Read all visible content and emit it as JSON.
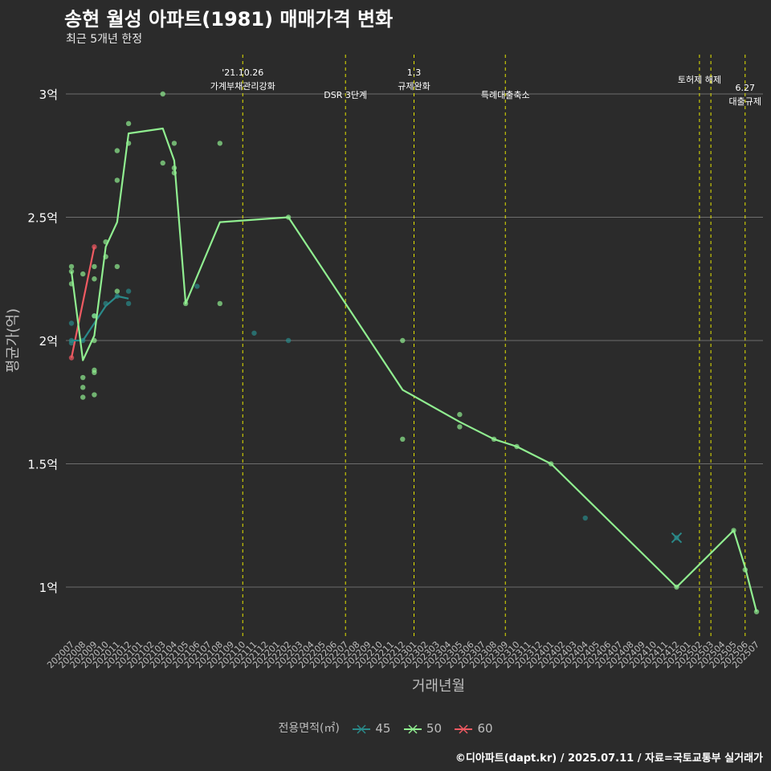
{
  "title": "송현 월성 아파트(1981) 매매가격 변화",
  "subtitle": "최근 5개년 한정",
  "caption": "©디아파트(dapt.kr) / 2025.07.11 / 자료=국토교통부 실거래가",
  "colors": {
    "background": "#2b2b2b",
    "grid": "#6e6e6e",
    "event_line": "#e4e400",
    "s45": "#2a8a8a",
    "s50": "#90ee90",
    "s60": "#f05a62",
    "text": "#ffffff",
    "axis_text": "#bdbdbd"
  },
  "chart_data": {
    "type": "line",
    "title": "송현 월성 아파트(1981) 매매가격 변화",
    "subtitle": "최근 5개년 한정",
    "xlabel": "거래년월",
    "ylabel": "평균가(억)",
    "ylim": [
      0.8,
      3.15
    ],
    "y_ticks": [
      1,
      1.5,
      2,
      2.5,
      3
    ],
    "y_tick_labels": [
      "1억",
      "1.5억",
      "2억",
      "2.5억",
      "3억"
    ],
    "categories": [
      "202007",
      "202008",
      "202009",
      "202010",
      "202011",
      "202012",
      "202101",
      "202102",
      "202103",
      "202104",
      "202105",
      "202106",
      "202107",
      "202108",
      "202109",
      "202110",
      "202111",
      "202112",
      "202201",
      "202202",
      "202203",
      "202204",
      "202205",
      "202206",
      "202207",
      "202208",
      "202209",
      "202210",
      "202211",
      "202212",
      "202301",
      "202302",
      "202303",
      "202304",
      "202305",
      "202306",
      "202307",
      "202308",
      "202309",
      "202310",
      "202311",
      "202312",
      "202401",
      "202402",
      "202403",
      "202404",
      "202405",
      "202406",
      "202407",
      "202408",
      "202409",
      "202410",
      "202411",
      "202412",
      "202501",
      "202502",
      "202503",
      "202504",
      "202505",
      "202506",
      "202507"
    ],
    "legend_title": "전용면적(㎡)",
    "series": [
      {
        "name": "45",
        "line": [
          [
            "202007",
            2.0
          ],
          [
            "202008",
            2.0
          ],
          [
            "202009",
            2.07
          ],
          [
            "202010",
            2.14
          ],
          [
            "202011",
            2.18
          ],
          [
            "202012",
            2.17
          ]
        ],
        "points": [
          [
            "202007",
            2.07
          ],
          [
            "202007",
            2.0
          ],
          [
            "202007",
            1.99
          ],
          [
            "202008",
            2.0
          ],
          [
            "202009",
            2.1
          ],
          [
            "202010",
            2.15
          ],
          [
            "202011",
            2.18
          ],
          [
            "202012",
            2.2
          ],
          [
            "202012",
            2.15
          ],
          [
            "202106",
            2.22
          ],
          [
            "202111",
            2.03
          ],
          [
            "202202",
            2.0
          ],
          [
            "202404",
            1.28
          ],
          [
            "202412",
            1.2
          ]
        ]
      },
      {
        "name": "50",
        "line": [
          [
            "202007",
            2.28
          ],
          [
            "202008",
            1.92
          ],
          [
            "202009",
            2.02
          ],
          [
            "202010",
            2.38
          ],
          [
            "202011",
            2.48
          ],
          [
            "202012",
            2.84
          ],
          [
            "202103",
            2.86
          ],
          [
            "202104",
            2.73
          ],
          [
            "202105",
            2.15
          ],
          [
            "202108",
            2.48
          ],
          [
            "202202",
            2.5
          ],
          [
            "202212",
            1.8
          ],
          [
            "202305",
            1.67
          ],
          [
            "202308",
            1.6
          ],
          [
            "202310",
            1.57
          ],
          [
            "202401",
            1.5
          ],
          [
            "202412",
            1.0
          ],
          [
            "202505",
            1.23
          ],
          [
            "202506",
            1.08
          ],
          [
            "202507",
            0.9
          ]
        ],
        "points": [
          [
            "202007",
            2.3
          ],
          [
            "202007",
            2.28
          ],
          [
            "202007",
            2.23
          ],
          [
            "202008",
            2.27
          ],
          [
            "202008",
            1.85
          ],
          [
            "202008",
            1.81
          ],
          [
            "202008",
            1.77
          ],
          [
            "202009",
            2.3
          ],
          [
            "202009",
            2.25
          ],
          [
            "202009",
            2.1
          ],
          [
            "202009",
            2.0
          ],
          [
            "202009",
            1.88
          ],
          [
            "202009",
            1.87
          ],
          [
            "202009",
            1.78
          ],
          [
            "202010",
            2.4
          ],
          [
            "202010",
            2.34
          ],
          [
            "202011",
            2.77
          ],
          [
            "202011",
            2.65
          ],
          [
            "202011",
            2.3
          ],
          [
            "202011",
            2.2
          ],
          [
            "202012",
            2.88
          ],
          [
            "202012",
            2.8
          ],
          [
            "202103",
            3.0
          ],
          [
            "202103",
            2.72
          ],
          [
            "202104",
            2.8
          ],
          [
            "202104",
            2.7
          ],
          [
            "202104",
            2.68
          ],
          [
            "202105",
            2.15
          ],
          [
            "202108",
            2.8
          ],
          [
            "202108",
            2.15
          ],
          [
            "202202",
            2.5
          ],
          [
            "202212",
            2.0
          ],
          [
            "202212",
            1.6
          ],
          [
            "202305",
            1.7
          ],
          [
            "202305",
            1.65
          ],
          [
            "202308",
            1.6
          ],
          [
            "202310",
            1.57
          ],
          [
            "202401",
            1.5
          ],
          [
            "202412",
            1.0
          ],
          [
            "202505",
            1.23
          ],
          [
            "202506",
            1.07
          ],
          [
            "202507",
            0.9
          ]
        ]
      },
      {
        "name": "60",
        "line": [
          [
            "202007",
            1.93
          ],
          [
            "202009",
            2.38
          ]
        ],
        "points": [
          [
            "202007",
            1.93
          ],
          [
            "202009",
            2.38
          ]
        ]
      }
    ],
    "single_marks": [
      {
        "series": "45",
        "x": "202412",
        "y": 1.2
      }
    ],
    "events": [
      {
        "x": "202110",
        "label": "'21.10.26\n가계부채관리강화",
        "row": 1
      },
      {
        "x": "202207",
        "label": "DSR 3단계",
        "row": 2
      },
      {
        "x": "202301",
        "label": "1.3\n규제완화",
        "row": 1
      },
      {
        "x": "202309",
        "label": "특례대출축소",
        "row": 2
      },
      {
        "x": "202502",
        "label": "토허제 해제",
        "row": 1
      },
      {
        "x": "202503",
        "label": "",
        "row": 1
      },
      {
        "x": "202506",
        "label": "6.27\n대출규제",
        "row": 1.5
      }
    ]
  }
}
